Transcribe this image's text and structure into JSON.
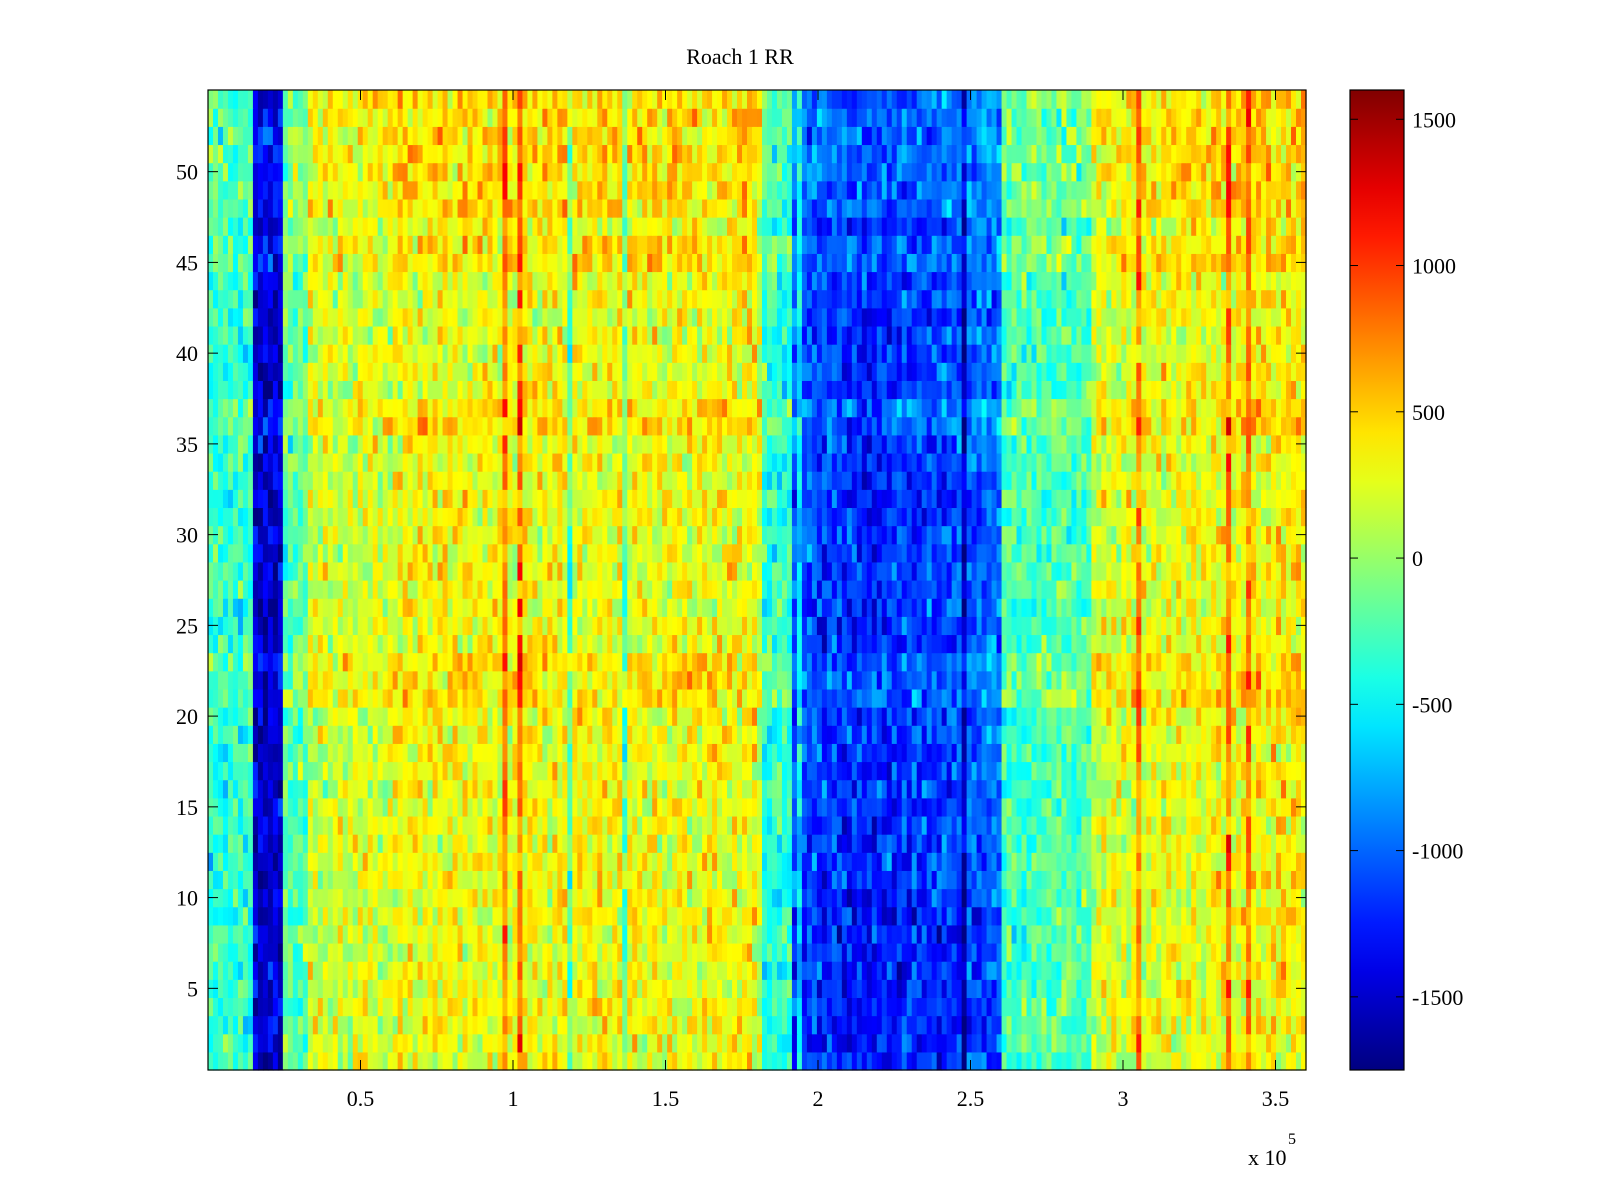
{
  "chart_data": {
    "type": "heatmap",
    "title": "Roach 1 RR",
    "xlabel": "",
    "ylabel": "",
    "x_exponent_label": "x 10",
    "x_exponent_power": "5",
    "x_ticks": [
      0.5,
      1,
      1.5,
      2,
      2.5,
      3,
      3.5
    ],
    "x_tick_labels": [
      "0.5",
      "1",
      "1.5",
      "2",
      "2.5",
      "3",
      "3.5"
    ],
    "xlim": [
      0,
      3.6
    ],
    "x_units_multiplier": 100000,
    "y_ticks": [
      5,
      10,
      15,
      20,
      25,
      30,
      35,
      40,
      45,
      50
    ],
    "y_tick_labels": [
      "5",
      "10",
      "15",
      "20",
      "25",
      "30",
      "35",
      "40",
      "45",
      "50"
    ],
    "ylim": [
      0.5,
      54.5
    ],
    "rows": 54,
    "colormap": "jet",
    "colorbar": {
      "clim": [
        -1750,
        1600
      ],
      "ticks": [
        1500,
        1000,
        500,
        0,
        -500,
        -1000,
        -1500
      ],
      "tick_labels": [
        "1500",
        "1000",
        "500",
        "0",
        "-500",
        "-1000",
        "-1500"
      ]
    },
    "features": [
      {
        "description": "strong negative band",
        "x_range": [
          0.14,
          0.25
        ],
        "rows": [
          1,
          54
        ],
        "value": -1600
      },
      {
        "description": "broad negative region",
        "x_range": [
          1.85,
          2.6
        ],
        "rows": [
          1,
          54
        ],
        "value": -900
      },
      {
        "description": "mildly positive background",
        "x_range": [
          0.3,
          1.8
        ],
        "rows": [
          1,
          54
        ],
        "value": 250
      },
      {
        "description": "positive right side",
        "x_range": [
          2.9,
          3.6
        ],
        "rows": [
          1,
          54
        ],
        "value": 400
      }
    ]
  }
}
